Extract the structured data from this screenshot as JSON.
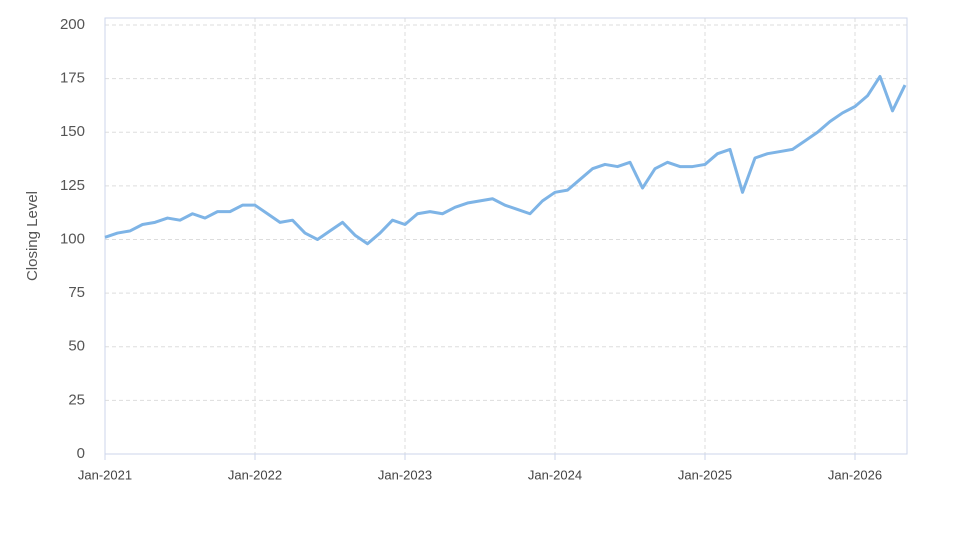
{
  "chart_data": {
    "type": "line",
    "y_label": "Closing Level",
    "categories": [
      "Jan-2021",
      null,
      null,
      null,
      null,
      null,
      null,
      null,
      null,
      null,
      null,
      null,
      "Jan-2022",
      null,
      null,
      null,
      null,
      null,
      null,
      null,
      null,
      null,
      null,
      null,
      "Jan-2023",
      null,
      null,
      null,
      null,
      null,
      null,
      null,
      null,
      null,
      null,
      null,
      "Jan-2024",
      null,
      null,
      null,
      null,
      null,
      null,
      null,
      null,
      null,
      null,
      null,
      "Jan-2025",
      null,
      null,
      null,
      null,
      null,
      null,
      null,
      null,
      null,
      null,
      null,
      "Jan-2026",
      null,
      null,
      null,
      null
    ],
    "values": [
      101,
      103,
      104,
      107,
      108,
      110,
      109,
      112,
      110,
      113,
      113,
      116,
      116,
      112,
      108,
      109,
      103,
      100,
      104,
      108,
      102,
      98,
      103,
      109,
      107,
      112,
      113,
      112,
      115,
      117,
      118,
      119,
      116,
      114,
      112,
      118,
      122,
      123,
      128,
      133,
      135,
      134,
      136,
      124,
      133,
      136,
      134,
      134,
      135,
      140,
      142,
      122,
      138,
      140,
      141,
      142,
      146,
      150,
      155,
      159,
      162,
      167,
      176,
      160,
      172
    ],
    "color": "#7eb4e6",
    "ylim": [
      0,
      200
    ],
    "yticks": [
      0,
      25,
      50,
      75,
      100,
      125,
      150,
      175,
      200
    ],
    "grid": true
  }
}
